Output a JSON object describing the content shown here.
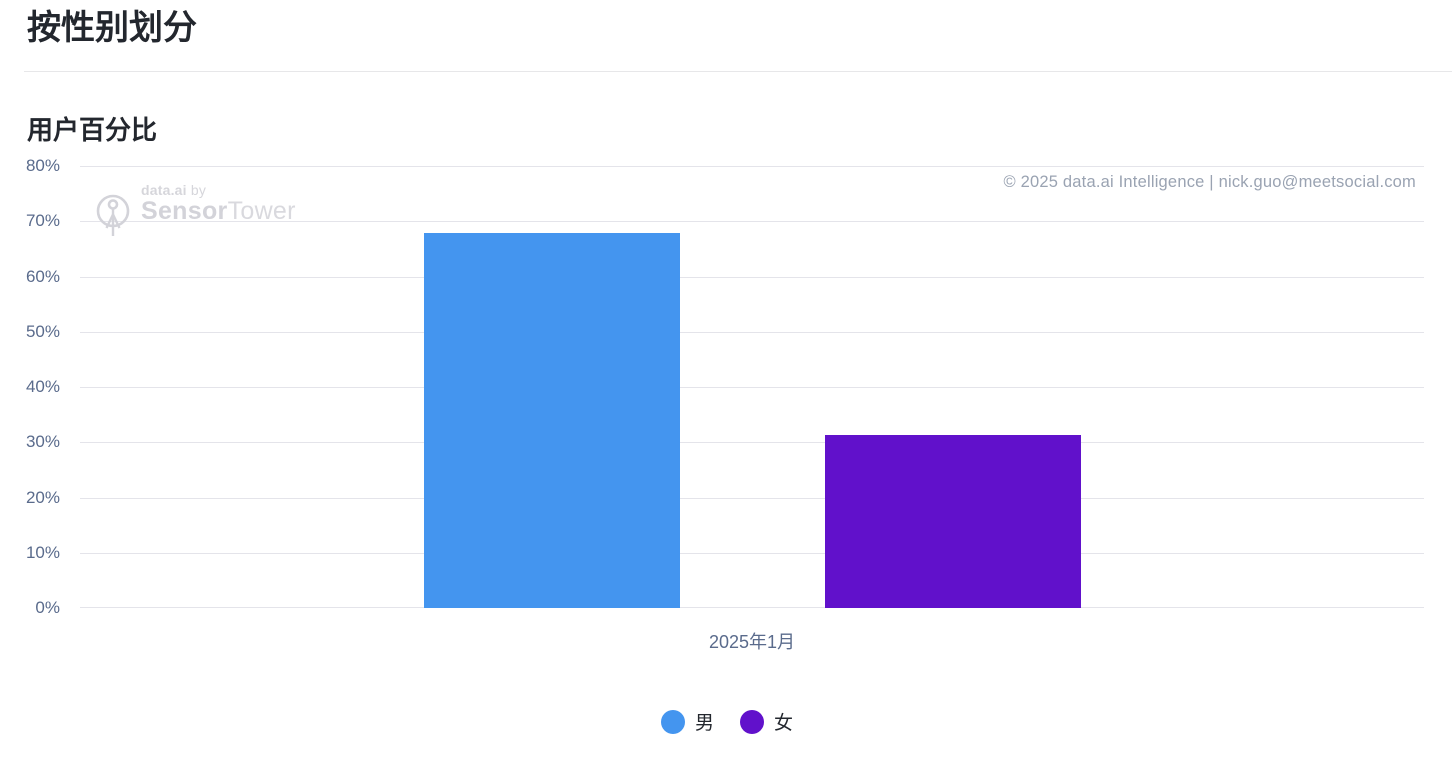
{
  "attribution": {
    "text": "© 2025 data.ai Intelligence | nick.guo@meetsocial.com"
  },
  "watermark": {
    "prefix_bold": "data.ai",
    "prefix_rest": " by",
    "brand_bold": "Sensor",
    "brand_light": "Tower"
  },
  "chart_data": {
    "type": "bar",
    "title": "按性别划分",
    "subtitle": "用户百分比",
    "categories": [
      "2025年1月"
    ],
    "series": [
      {
        "name": "男",
        "color": "#4495ef",
        "values": [
          67.8
        ]
      },
      {
        "name": "女",
        "color": "#6111cb",
        "values": [
          31.4
        ]
      }
    ],
    "xlabel": "",
    "ylabel": "用户百分比",
    "ylim": [
      0,
      80
    ],
    "ytick_step": 10,
    "ytick_suffix": "%",
    "grid": true,
    "legend_position": "bottom",
    "background": "#ffffff",
    "gridline_color": "#e4e4ea",
    "axis_text_color": "#5a6b8c"
  }
}
